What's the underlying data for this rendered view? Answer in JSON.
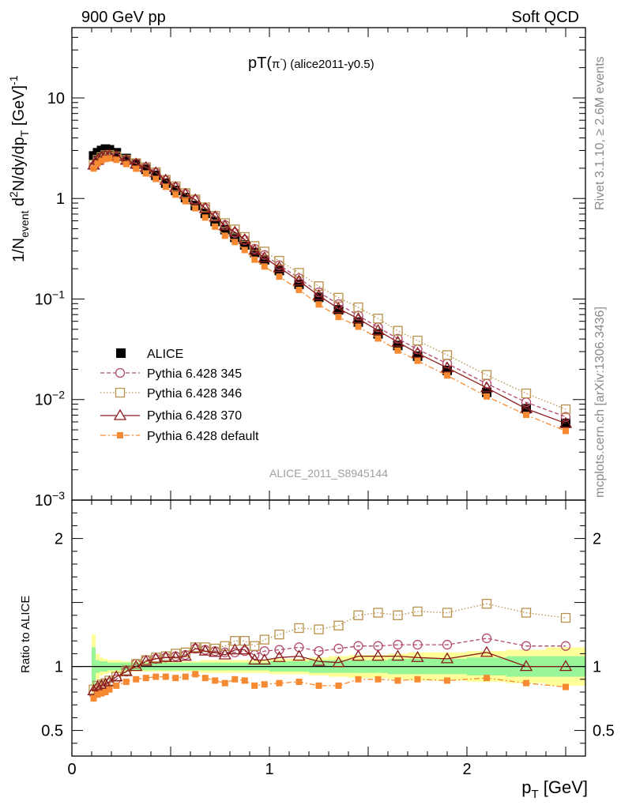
{
  "header": {
    "left": "900 GeV pp",
    "right": "Soft QCD"
  },
  "side": {
    "rivet": "Rivet 3.1.10, ≥ 2.6M events",
    "mcplots": "mcplots.cern.ch [arXiv:1306.3436]"
  },
  "colors": {
    "alice": "#000000",
    "t345": "#b24a6a",
    "t346": "#b8914a",
    "t370": "#8b1a1a",
    "tdef": "#f58a32",
    "band_outer": "#ffff99",
    "band_inner": "#98f598"
  },
  "chart_data": {
    "type": "line",
    "title": "pT(π⁻) (alice2011-y0.5)",
    "title_main": "pT(",
    "title_pi": "π",
    "title_sup": "-",
    "title_rest": ") (alice2011-y0.5)",
    "watermark": "ALICE_2011_S8945144",
    "xlabel_main": "p",
    "xlabel_sub": "T",
    "xlabel_rest": " [GeV]",
    "ylabel": "1/N_event d²N/dy/dp_T [GeV]⁻¹",
    "ylabel_a": "1/N",
    "ylabel_sub1": "event",
    "ylabel_b": " d",
    "ylabel_sup1": "2",
    "ylabel_c": "N/dy/dp",
    "ylabel_sub2": "T",
    "ylabel_d": " [GeV]",
    "ylabel_sup2": "-1",
    "ratio_ylabel": "Ratio to ALICE",
    "xlim": [
      0,
      2.6
    ],
    "ylim_log": [
      0.001,
      50
    ],
    "ratio_ylim": [
      0.3,
      2.3
    ],
    "x_ticks": [
      {
        "v": 0,
        "label": "0"
      },
      {
        "v": 1,
        "label": "1"
      },
      {
        "v": 2,
        "label": "2"
      }
    ],
    "y_ticks": [
      {
        "v": 10,
        "base": "10",
        "exp": ""
      },
      {
        "v": 1,
        "base": "1",
        "exp": ""
      },
      {
        "v": 0.1,
        "base": "10",
        "exp": "−1"
      },
      {
        "v": 0.01,
        "base": "10",
        "exp": "−2"
      },
      {
        "v": 0.001,
        "base": "10",
        "exp": "−3"
      }
    ],
    "ratio_ticks": [
      {
        "v": 0.5,
        "label": "0.5"
      },
      {
        "v": 1,
        "label": "1"
      },
      {
        "v": 2,
        "label": "2"
      }
    ],
    "x": [
      0.11,
      0.13,
      0.15,
      0.17,
      0.19,
      0.225,
      0.275,
      0.325,
      0.375,
      0.425,
      0.475,
      0.525,
      0.575,
      0.625,
      0.675,
      0.725,
      0.775,
      0.825,
      0.875,
      0.925,
      0.975,
      1.05,
      1.15,
      1.25,
      1.35,
      1.45,
      1.55,
      1.65,
      1.75,
      1.9,
      2.1,
      2.3,
      2.5
    ],
    "alice": [
      2.65,
      2.85,
      3.0,
      3.1,
      3.05,
      2.85,
      2.5,
      2.2,
      1.95,
      1.7,
      1.42,
      1.2,
      1.02,
      0.85,
      0.71,
      0.59,
      0.49,
      0.41,
      0.345,
      0.29,
      0.245,
      0.192,
      0.14,
      0.104,
      0.078,
      0.059,
      0.045,
      0.0345,
      0.027,
      0.0195,
      0.0118,
      0.0081,
      0.0058
    ],
    "series": [
      {
        "key": "alice",
        "name": "ALICE",
        "marker": "fsquare",
        "line": "none"
      },
      {
        "key": "t345",
        "name": "Pythia 6.428 345",
        "marker": "circle",
        "line": "dashed",
        "ratio": [
          0.79,
          0.83,
          0.84,
          0.85,
          0.87,
          0.9,
          0.96,
          1.02,
          1.05,
          1.06,
          1.07,
          1.08,
          1.09,
          1.14,
          1.13,
          1.12,
          1.11,
          1.11,
          1.12,
          1.09,
          1.12,
          1.13,
          1.15,
          1.12,
          1.14,
          1.16,
          1.16,
          1.17,
          1.17,
          1.17,
          1.22,
          1.16,
          1.16
        ]
      },
      {
        "key": "t346",
        "name": "Pythia 6.428 346",
        "marker": "square",
        "line": "dotted",
        "ratio": [
          0.82,
          0.85,
          0.86,
          0.87,
          0.89,
          0.92,
          0.97,
          1.02,
          1.05,
          1.07,
          1.08,
          1.1,
          1.11,
          1.15,
          1.15,
          1.14,
          1.16,
          1.2,
          1.2,
          1.16,
          1.21,
          1.25,
          1.3,
          1.29,
          1.32,
          1.4,
          1.42,
          1.4,
          1.43,
          1.42,
          1.49,
          1.42,
          1.38
        ]
      },
      {
        "key": "t370",
        "name": "Pythia 6.428 370",
        "marker": "triangle",
        "line": "solid",
        "ratio": [
          0.81,
          0.84,
          0.85,
          0.86,
          0.88,
          0.92,
          0.96,
          1.0,
          1.04,
          1.06,
          1.07,
          1.07,
          1.08,
          1.14,
          1.12,
          1.11,
          1.09,
          1.13,
          1.13,
          1.05,
          1.05,
          1.07,
          1.08,
          1.04,
          1.03,
          1.08,
          1.08,
          1.08,
          1.07,
          1.06,
          1.11,
          1.0,
          1.0
        ]
      },
      {
        "key": "tdef",
        "name": "Pythia 6.428 default",
        "marker": "fsquare_small",
        "line": "dashdot",
        "ratio": [
          0.75,
          0.78,
          0.79,
          0.8,
          0.82,
          0.85,
          0.88,
          0.9,
          0.91,
          0.92,
          0.92,
          0.91,
          0.92,
          0.94,
          0.91,
          0.89,
          0.87,
          0.9,
          0.89,
          0.85,
          0.86,
          0.87,
          0.88,
          0.85,
          0.85,
          0.9,
          0.9,
          0.89,
          0.9,
          0.89,
          0.91,
          0.87,
          0.84
        ]
      }
    ],
    "band": {
      "x_edges": [
        0.1,
        0.12,
        0.14,
        0.16,
        0.18,
        0.2,
        0.25,
        0.3,
        0.35,
        0.4,
        0.45,
        0.5,
        0.55,
        0.6,
        0.65,
        0.7,
        0.75,
        0.8,
        0.85,
        0.9,
        0.95,
        1.0,
        1.1,
        1.2,
        1.3,
        1.4,
        1.5,
        1.6,
        1.7,
        1.8,
        2.0,
        2.2,
        2.4,
        2.6
      ],
      "outer": [
        0.25,
        0.1,
        0.07,
        0.06,
        0.05,
        0.05,
        0.04,
        0.04,
        0.04,
        0.04,
        0.04,
        0.04,
        0.04,
        0.04,
        0.05,
        0.05,
        0.05,
        0.05,
        0.05,
        0.05,
        0.05,
        0.06,
        0.06,
        0.07,
        0.08,
        0.09,
        0.09,
        0.1,
        0.11,
        0.11,
        0.12,
        0.13,
        0.15
      ],
      "inner": [
        0.15,
        0.05,
        0.04,
        0.04,
        0.03,
        0.03,
        0.03,
        0.03,
        0.03,
        0.03,
        0.03,
        0.03,
        0.03,
        0.03,
        0.03,
        0.03,
        0.03,
        0.03,
        0.03,
        0.03,
        0.03,
        0.04,
        0.04,
        0.05,
        0.05,
        0.05,
        0.05,
        0.06,
        0.06,
        0.06,
        0.07,
        0.08,
        0.08
      ]
    }
  }
}
